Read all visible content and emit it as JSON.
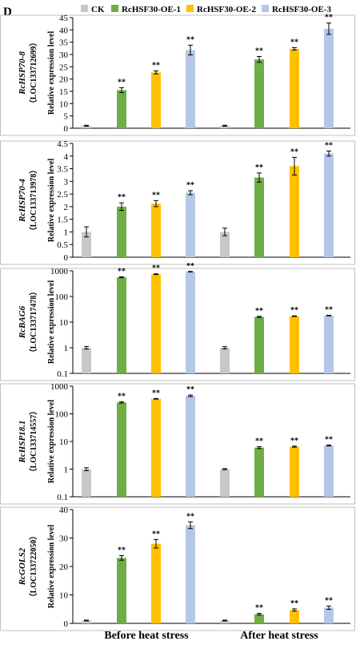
{
  "figure": {
    "panel_letter": "D",
    "conditions": [
      "Before heat stress",
      "After heat stress"
    ]
  },
  "legend": [
    {
      "name": "CK",
      "color": "#c8c8c8"
    },
    {
      "name": "RcHSF30-OE-1",
      "color": "#70ad47"
    },
    {
      "name": "RcHSF30-OE-2",
      "color": "#ffc000"
    },
    {
      "name": "RcHSF30-OE-3",
      "color": "#b4c7e7"
    }
  ],
  "chart_data": [
    {
      "type": "bar",
      "gene": "RcHSP70-8",
      "locus": "（LOC133712699）",
      "ylabel": "Relative expression level",
      "yscale": "linear",
      "ylim": [
        0,
        45
      ],
      "yticks": [
        0,
        5,
        10,
        15,
        20,
        25,
        30,
        35,
        40,
        45
      ],
      "categories": [
        "Before heat stress",
        "After heat stress"
      ],
      "series": [
        {
          "name": "CK",
          "values": [
            1,
            1
          ],
          "errors": [
            0.2,
            0.2
          ],
          "significance": [
            "",
            ""
          ]
        },
        {
          "name": "RcHSF30-OE-1",
          "values": [
            15.5,
            28
          ],
          "errors": [
            1,
            1.2
          ],
          "significance": [
            "**",
            "**"
          ]
        },
        {
          "name": "RcHSF30-OE-2",
          "values": [
            22.7,
            32.3
          ],
          "errors": [
            0.6,
            0.5
          ],
          "significance": [
            "**",
            "**"
          ]
        },
        {
          "name": "RcHSF30-OE-3",
          "values": [
            31.8,
            40.5
          ],
          "errors": [
            2,
            2.3
          ],
          "significance": [
            "**",
            "**"
          ]
        }
      ]
    },
    {
      "type": "bar",
      "gene": "RcHSP70-4",
      "locus": "（LOC133713978）",
      "ylabel": "Relative expression level",
      "yscale": "linear",
      "ylim": [
        0,
        4.5
      ],
      "yticks": [
        0,
        0.5,
        1,
        1.5,
        2,
        2.5,
        3,
        3.5,
        4,
        4.5
      ],
      "categories": [
        "Before heat stress",
        "After heat stress"
      ],
      "series": [
        {
          "name": "CK",
          "values": [
            1,
            1
          ],
          "errors": [
            0.2,
            0.15
          ],
          "significance": [
            "",
            ""
          ]
        },
        {
          "name": "RcHSF30-OE-1",
          "values": [
            2.0,
            3.15
          ],
          "errors": [
            0.15,
            0.18
          ],
          "significance": [
            "**",
            "**"
          ]
        },
        {
          "name": "RcHSF30-OE-2",
          "values": [
            2.12,
            3.6
          ],
          "errors": [
            0.12,
            0.35
          ],
          "significance": [
            "**",
            "**"
          ]
        },
        {
          "name": "RcHSF30-OE-3",
          "values": [
            2.55,
            4.1
          ],
          "errors": [
            0.08,
            0.1
          ],
          "significance": [
            "**",
            "**"
          ]
        }
      ]
    },
    {
      "type": "bar",
      "gene": "RcBAG6",
      "locus": "（LOC133717478）",
      "ylabel": "Relative expression level",
      "yscale": "log",
      "ylim": [
        0.1,
        1000
      ],
      "yticks": [
        0.1,
        1,
        10,
        100,
        1000
      ],
      "ytick_labels": [
        "0.1",
        "1",
        "10",
        "100",
        "1000"
      ],
      "categories": [
        "Before heat stress",
        "After heat stress"
      ],
      "series": [
        {
          "name": "CK",
          "values": [
            1,
            1
          ],
          "errors": [
            0.12,
            0.1
          ],
          "significance": [
            "",
            ""
          ]
        },
        {
          "name": "RcHSF30-OE-1",
          "values": [
            560,
            16
          ],
          "errors": [
            20,
            0.8
          ],
          "significance": [
            "**",
            "**"
          ]
        },
        {
          "name": "RcHSF30-OE-2",
          "values": [
            740,
            17
          ],
          "errors": [
            25,
            0.5
          ],
          "significance": [
            "**",
            "**"
          ]
        },
        {
          "name": "RcHSF30-OE-3",
          "values": [
            920,
            18
          ],
          "errors": [
            25,
            0.5
          ],
          "significance": [
            "**",
            "**"
          ]
        }
      ]
    },
    {
      "type": "bar",
      "gene": "RcHSP18.1",
      "locus": "（LOC133714557）",
      "ylabel": "Relative expression level",
      "yscale": "log",
      "ylim": [
        0.1,
        1000
      ],
      "yticks": [
        0.1,
        1,
        10,
        100,
        1000
      ],
      "ytick_labels": [
        "0.1",
        "1",
        "10",
        "100",
        "1000"
      ],
      "categories": [
        "Before heat stress",
        "After heat stress"
      ],
      "series": [
        {
          "name": "CK",
          "values": [
            1,
            1
          ],
          "errors": [
            0.12,
            0.05
          ],
          "significance": [
            "",
            ""
          ]
        },
        {
          "name": "RcHSF30-OE-1",
          "values": [
            260,
            6
          ],
          "errors": [
            15,
            0.5
          ],
          "significance": [
            "**",
            "**"
          ]
        },
        {
          "name": "RcHSF30-OE-2",
          "values": [
            350,
            6.5
          ],
          "errors": [
            10,
            0.3
          ],
          "significance": [
            "**",
            "**"
          ]
        },
        {
          "name": "RcHSF30-OE-3",
          "values": [
            450,
            7.2
          ],
          "errors": [
            30,
            0.3
          ],
          "significance": [
            "**",
            "**"
          ]
        }
      ]
    },
    {
      "type": "bar",
      "gene": "RcGOLS2",
      "locus": "（LOC133722050）",
      "ylabel": "Relative expression level",
      "yscale": "linear",
      "ylim": [
        0,
        40
      ],
      "yticks": [
        0,
        10,
        20,
        30,
        40
      ],
      "categories": [
        "Before heat stress",
        "After heat stress"
      ],
      "series": [
        {
          "name": "CK",
          "values": [
            1,
            1
          ],
          "errors": [
            0.15,
            0.15
          ],
          "significance": [
            "",
            ""
          ]
        },
        {
          "name": "RcHSF30-OE-1",
          "values": [
            23,
            3.2
          ],
          "errors": [
            0.8,
            0.3
          ],
          "significance": [
            "**",
            "**"
          ]
        },
        {
          "name": "RcHSF30-OE-2",
          "values": [
            28,
            4.7
          ],
          "errors": [
            1.5,
            0.4
          ],
          "significance": [
            "**",
            "**"
          ]
        },
        {
          "name": "RcHSF30-OE-3",
          "values": [
            34.5,
            5.5
          ],
          "errors": [
            1.2,
            0.6
          ],
          "significance": [
            "**",
            "**"
          ]
        }
      ]
    }
  ]
}
